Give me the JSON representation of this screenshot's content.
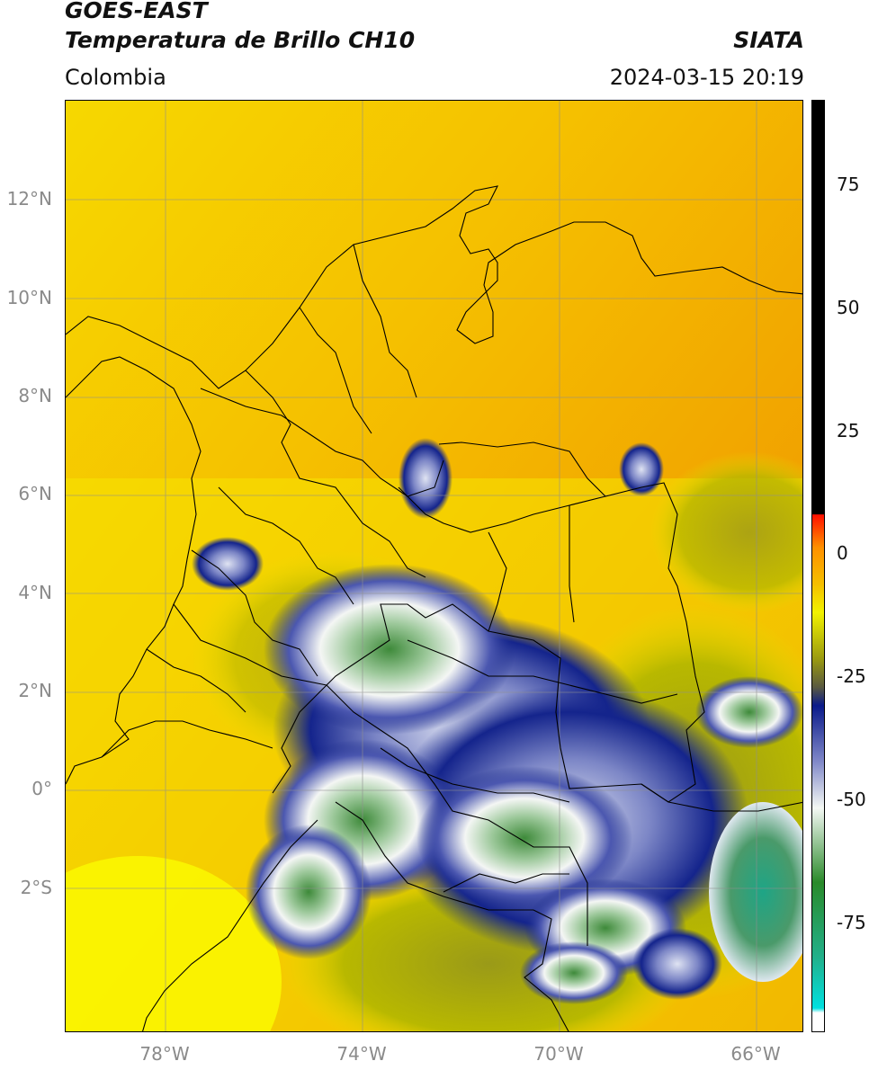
{
  "header": {
    "satellite": "GOES-EAST",
    "product": "Temperatura de Brillo CH10",
    "region": "Colombia",
    "agency": "SIATA",
    "datetime": "2024-03-15 20:19"
  },
  "map": {
    "lat_labels": [
      "12°N",
      "10°N",
      "8°N",
      "6°N",
      "4°N",
      "2°N",
      "0°",
      "2°S"
    ],
    "lon_labels": [
      "78°W",
      "74°W",
      "70°W",
      "66°W"
    ],
    "gridlines": true
  },
  "colorbar": {
    "tick_labels": [
      "75",
      "50",
      "25",
      "0",
      "-25",
      "-50",
      "-75"
    ],
    "colors": {
      "cyan": "#00e0e0",
      "teal": "#22b08a",
      "green": "#2a8a2a",
      "white": "#f4f8f4",
      "navy": "#0a1a8a",
      "olive": "#9a9a10",
      "yellow": "#f2f200",
      "orange": "#ff9000",
      "red": "#ff1000",
      "black": "#000000"
    }
  }
}
